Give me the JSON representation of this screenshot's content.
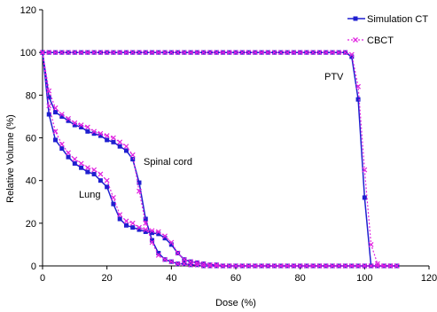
{
  "chart_data": {
    "type": "line",
    "title": "",
    "xlabel": "Dose (%)",
    "ylabel": "Relative Volume (%)",
    "xlim": [
      0,
      120
    ],
    "ylim": [
      0,
      120
    ],
    "xticks": [
      0,
      20,
      40,
      60,
      80,
      100,
      120
    ],
    "yticks": [
      0,
      20,
      40,
      60,
      80,
      100,
      120
    ],
    "grid": false,
    "legend_position": "top-right",
    "colors": {
      "simulation_ct": "#1f1fd0",
      "cbct": "#e020e0"
    },
    "annotations": [
      "PTV",
      "Spinal cord",
      "Lung"
    ],
    "series": [
      {
        "name": "Simulation CT",
        "style": "solid-square",
        "curves": {
          "PTV": {
            "x": [
              0,
              2,
              4,
              6,
              8,
              10,
              12,
              14,
              16,
              18,
              20,
              22,
              24,
              26,
              28,
              30,
              32,
              34,
              36,
              38,
              40,
              42,
              44,
              46,
              48,
              50,
              52,
              54,
              56,
              58,
              60,
              62,
              64,
              66,
              68,
              70,
              72,
              74,
              76,
              78,
              80,
              82,
              84,
              86,
              88,
              90,
              92,
              94,
              96,
              98,
              100,
              102,
              104,
              106,
              108,
              110
            ],
            "y": [
              100,
              100,
              100,
              100,
              100,
              100,
              100,
              100,
              100,
              100,
              100,
              100,
              100,
              100,
              100,
              100,
              100,
              100,
              100,
              100,
              100,
              100,
              100,
              100,
              100,
              100,
              100,
              100,
              100,
              100,
              100,
              100,
              100,
              100,
              100,
              100,
              100,
              100,
              100,
              100,
              100,
              100,
              100,
              100,
              100,
              100,
              100,
              100,
              98,
              78,
              32,
              0,
              0,
              0,
              0,
              0
            ]
          },
          "Spinal cord": {
            "x": [
              0,
              2,
              4,
              6,
              8,
              10,
              12,
              14,
              16,
              18,
              20,
              22,
              24,
              26,
              28,
              30,
              32,
              34,
              36,
              38,
              40,
              42,
              44,
              46,
              48,
              50,
              52,
              54,
              56,
              58,
              60,
              62,
              64,
              66,
              68,
              70,
              72,
              74,
              76,
              78,
              80,
              82,
              84,
              86,
              88,
              90,
              92,
              94,
              96,
              98,
              100,
              102,
              104,
              106,
              108,
              110
            ],
            "y": [
              100,
              79,
              72,
              70,
              68,
              66,
              65,
              63,
              62,
              61,
              59,
              58,
              56,
              54,
              50,
              39,
              22,
              12,
              6,
              3,
              2,
              1,
              1,
              0.5,
              0.5,
              0,
              0,
              0,
              0,
              0,
              0,
              0,
              0,
              0,
              0,
              0,
              0,
              0,
              0,
              0,
              0,
              0,
              0,
              0,
              0,
              0,
              0,
              0,
              0,
              0,
              0,
              0,
              0,
              0,
              0,
              0
            ]
          },
          "Lung": {
            "x": [
              0,
              2,
              4,
              6,
              8,
              10,
              12,
              14,
              16,
              18,
              20,
              22,
              24,
              26,
              28,
              30,
              32,
              34,
              36,
              38,
              40,
              42,
              44,
              46,
              48,
              50,
              52,
              54,
              56,
              58,
              60,
              62,
              64,
              66,
              68,
              70,
              72,
              74,
              76,
              78,
              80,
              82,
              84,
              86,
              88,
              90,
              92,
              94,
              96,
              98,
              100,
              102,
              104,
              106,
              108,
              110
            ],
            "y": [
              100,
              71,
              59,
              55,
              51,
              48,
              46,
              44,
              43,
              40,
              37,
              29,
              22,
              19,
              18,
              17,
              16,
              15.5,
              15,
              13,
              10,
              6,
              3,
              2,
              1.5,
              1,
              0.5,
              0.5,
              0,
              0,
              0,
              0,
              0,
              0,
              0,
              0,
              0,
              0,
              0,
              0,
              0,
              0,
              0,
              0,
              0,
              0,
              0,
              0,
              0,
              0,
              0,
              0,
              0,
              0,
              0,
              0
            ]
          }
        }
      },
      {
        "name": "CBCT",
        "style": "dotted-x",
        "curves": {
          "PTV": {
            "x": [
              0,
              2,
              4,
              6,
              8,
              10,
              12,
              14,
              16,
              18,
              20,
              22,
              24,
              26,
              28,
              30,
              32,
              34,
              36,
              38,
              40,
              42,
              44,
              46,
              48,
              50,
              52,
              54,
              56,
              58,
              60,
              62,
              64,
              66,
              68,
              70,
              72,
              74,
              76,
              78,
              80,
              82,
              84,
              86,
              88,
              90,
              92,
              94,
              96,
              98,
              100,
              102,
              104,
              106,
              108,
              110
            ],
            "y": [
              100,
              100,
              100,
              100,
              100,
              100,
              100,
              100,
              100,
              100,
              100,
              100,
              100,
              100,
              100,
              100,
              100,
              100,
              100,
              100,
              100,
              100,
              100,
              100,
              100,
              100,
              100,
              100,
              100,
              100,
              100,
              100,
              100,
              100,
              100,
              100,
              100,
              100,
              100,
              100,
              100,
              100,
              100,
              100,
              100,
              100,
              100,
              100,
              99,
              84,
              45,
              10,
              1,
              0,
              0,
              0
            ]
          },
          "Spinal cord": {
            "x": [
              0,
              2,
              4,
              6,
              8,
              10,
              12,
              14,
              16,
              18,
              20,
              22,
              24,
              26,
              28,
              30,
              32,
              34,
              36,
              38,
              40,
              42,
              44,
              46,
              48,
              50,
              52,
              54,
              56,
              58,
              60,
              62,
              64,
              66,
              68,
              70,
              72,
              74,
              76,
              78,
              80,
              82,
              84,
              86,
              88,
              90,
              92,
              94,
              96,
              98,
              100,
              102,
              104,
              106,
              108,
              110
            ],
            "y": [
              100,
              82,
              74,
              71,
              69,
              67,
              66,
              65,
              63,
              62,
              61,
              60,
              58,
              56,
              52,
              35,
              20,
              11,
              5,
              3,
              2,
              1,
              1,
              0.5,
              0.5,
              0,
              0,
              0,
              0,
              0,
              0,
              0,
              0,
              0,
              0,
              0,
              0,
              0,
              0,
              0,
              0,
              0,
              0,
              0,
              0,
              0,
              0,
              0,
              0,
              0,
              0,
              0,
              0,
              0,
              0,
              0
            ]
          },
          "Lung": {
            "x": [
              0,
              2,
              4,
              6,
              8,
              10,
              12,
              14,
              16,
              18,
              20,
              22,
              24,
              26,
              28,
              30,
              32,
              34,
              36,
              38,
              40,
              42,
              44,
              46,
              48,
              50,
              52,
              54,
              56,
              58,
              60,
              62,
              64,
              66,
              68,
              70,
              72,
              74,
              76,
              78,
              80,
              82,
              84,
              86,
              88,
              90,
              92,
              94,
              96,
              98,
              100,
              102,
              104,
              106,
              108,
              110
            ],
            "y": [
              100,
              75,
              63,
              57,
              53,
              50,
              48,
              46,
              45,
              43,
              40,
              32,
              24,
              21,
              20,
              18,
              17,
              16.5,
              16,
              14,
              11,
              6,
              3,
              2,
              1.5,
              1,
              0.5,
              0.5,
              0,
              0,
              0,
              0,
              0,
              0,
              0,
              0,
              0,
              0,
              0,
              0,
              0,
              0,
              0,
              0,
              0,
              0,
              0,
              0,
              0,
              0,
              0,
              0,
              0,
              0,
              0,
              0
            ]
          }
        }
      }
    ]
  }
}
